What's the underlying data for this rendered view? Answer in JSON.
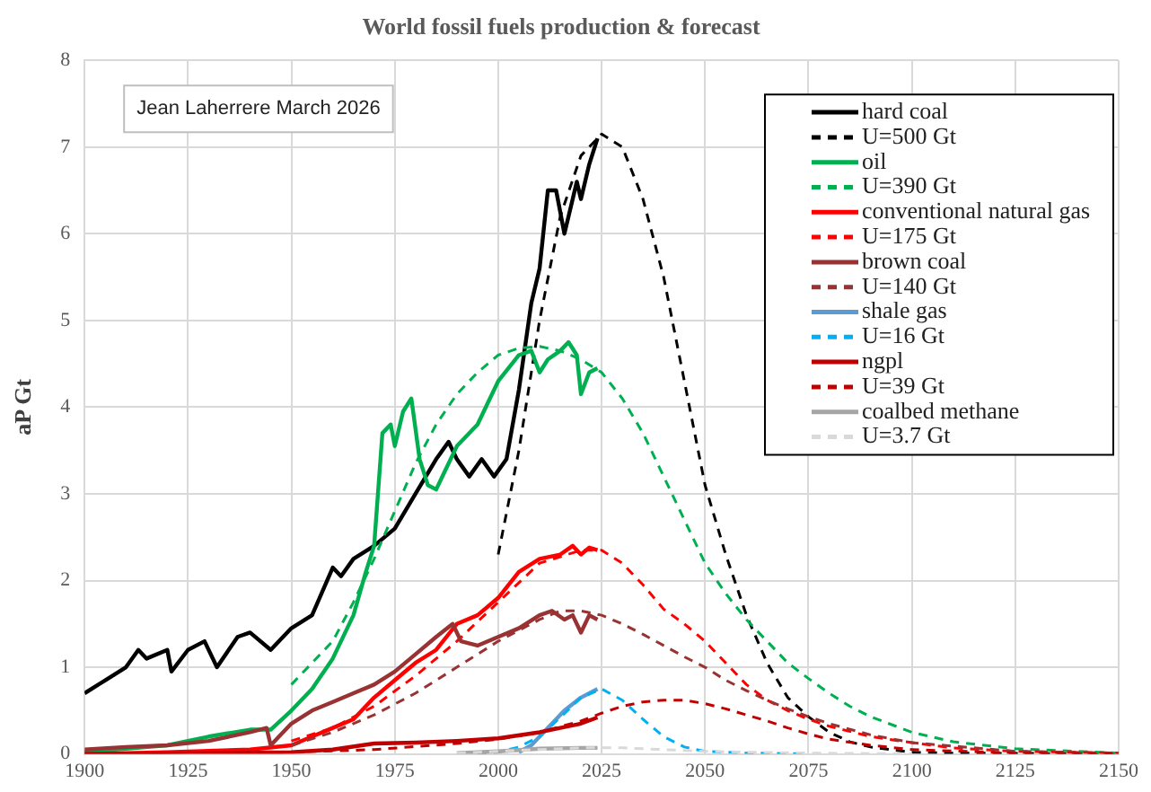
{
  "chart_data": {
    "type": "line",
    "title": "World fossil fuels production & forecast",
    "ylabel": "aP Gt",
    "annotations": [
      "Jean Laherrere March 2026"
    ],
    "xlim": [
      1900,
      2150
    ],
    "xticks": [
      1900,
      1925,
      1950,
      1975,
      2000,
      2025,
      2050,
      2075,
      2100,
      2125,
      2150
    ],
    "ylim": [
      0,
      8
    ],
    "yticks": [
      0,
      1,
      2,
      3,
      4,
      5,
      6,
      7,
      8
    ],
    "grid": true,
    "legend": "top right",
    "marker": "none",
    "series": [
      {
        "name": "hard coal",
        "color": "#000000",
        "line_style": "solid",
        "x": [
          1900,
          1905,
          1910,
          1913,
          1915,
          1920,
          1921,
          1925,
          1929,
          1932,
          1937,
          1940,
          1945,
          1950,
          1955,
          1960,
          1962,
          1965,
          1970,
          1975,
          1980,
          1985,
          1988,
          1990,
          1993,
          1996,
          1999,
          2002,
          2005,
          2008,
          2010,
          2012,
          2014,
          2016,
          2018,
          2019,
          2020,
          2022,
          2024
        ],
        "values": [
          0.7,
          0.85,
          1.0,
          1.2,
          1.1,
          1.2,
          0.95,
          1.2,
          1.3,
          1.0,
          1.35,
          1.4,
          1.2,
          1.45,
          1.6,
          2.15,
          2.05,
          2.25,
          2.4,
          2.6,
          3.0,
          3.4,
          3.6,
          3.4,
          3.2,
          3.4,
          3.2,
          3.4,
          4.2,
          5.2,
          5.6,
          6.5,
          6.5,
          6.0,
          6.4,
          6.6,
          6.4,
          6.8,
          7.1
        ]
      },
      {
        "name": "U=500 Gt",
        "color": "#000000",
        "line_style": "dashed",
        "x": [
          2000,
          2005,
          2010,
          2015,
          2020,
          2025,
          2030,
          2035,
          2040,
          2045,
          2050,
          2055,
          2060,
          2065,
          2070,
          2075,
          2080,
          2085,
          2090,
          2100,
          2110,
          2150
        ],
        "values": [
          2.3,
          3.5,
          5.0,
          6.2,
          6.9,
          7.15,
          7.0,
          6.4,
          5.5,
          4.3,
          3.1,
          2.3,
          1.6,
          1.05,
          0.65,
          0.43,
          0.25,
          0.14,
          0.08,
          0.02,
          0.01,
          0
        ]
      },
      {
        "name": "oil",
        "color": "#00b050",
        "line_style": "solid",
        "x": [
          1900,
          1920,
          1930,
          1940,
          1945,
          1950,
          1955,
          1960,
          1965,
          1968,
          1970,
          1972,
          1974,
          1975,
          1977,
          1979,
          1981,
          1983,
          1985,
          1987,
          1990,
          1995,
          1998,
          2000,
          2005,
          2008,
          2010,
          2012,
          2015,
          2017,
          2019,
          2020,
          2022,
          2024
        ],
        "values": [
          0.02,
          0.1,
          0.2,
          0.28,
          0.28,
          0.5,
          0.75,
          1.1,
          1.6,
          2.1,
          2.4,
          3.7,
          3.8,
          3.55,
          3.95,
          4.1,
          3.4,
          3.1,
          3.05,
          3.25,
          3.55,
          3.8,
          4.1,
          4.3,
          4.6,
          4.65,
          4.4,
          4.55,
          4.65,
          4.75,
          4.6,
          4.15,
          4.4,
          4.45
        ]
      },
      {
        "name": "U=390 Gt",
        "color": "#00b050",
        "line_style": "dashed",
        "x": [
          1950,
          1955,
          1960,
          1965,
          1970,
          1975,
          1980,
          1985,
          1990,
          1995,
          2000,
          2005,
          2010,
          2015,
          2020,
          2025,
          2030,
          2035,
          2040,
          2045,
          2050,
          2055,
          2060,
          2065,
          2070,
          2075,
          2080,
          2085,
          2090,
          2100,
          2110,
          2125,
          2150
        ],
        "values": [
          0.8,
          1.05,
          1.3,
          1.75,
          2.25,
          2.8,
          3.35,
          3.8,
          4.15,
          4.4,
          4.6,
          4.68,
          4.7,
          4.65,
          4.55,
          4.4,
          4.1,
          3.7,
          3.2,
          2.7,
          2.2,
          1.85,
          1.55,
          1.3,
          1.05,
          0.87,
          0.7,
          0.55,
          0.43,
          0.25,
          0.14,
          0.06,
          0.01
        ]
      },
      {
        "name": "conventional natural gas",
        "color": "#ff0000",
        "line_style": "solid",
        "x": [
          1900,
          1920,
          1940,
          1950,
          1955,
          1960,
          1965,
          1970,
          1975,
          1980,
          1985,
          1990,
          1995,
          2000,
          2005,
          2010,
          2015,
          2018,
          2020,
          2022,
          2024
        ],
        "values": [
          0,
          0.02,
          0.05,
          0.1,
          0.2,
          0.3,
          0.4,
          0.65,
          0.85,
          1.05,
          1.2,
          1.5,
          1.6,
          1.8,
          2.1,
          2.25,
          2.3,
          2.4,
          2.3,
          2.38,
          2.35
        ]
      },
      {
        "name": "U=175 Gt",
        "color": "#ff0000",
        "line_style": "dashed",
        "x": [
          1950,
          1960,
          1970,
          1980,
          1990,
          2000,
          2010,
          2020,
          2025,
          2030,
          2035,
          2040,
          2045,
          2050,
          2055,
          2060,
          2065,
          2070,
          2075,
          2080,
          2090,
          2100,
          2110,
          2125,
          2150
        ],
        "values": [
          0.15,
          0.3,
          0.55,
          0.9,
          1.3,
          1.75,
          2.2,
          2.35,
          2.35,
          2.2,
          1.95,
          1.67,
          1.5,
          1.3,
          1.05,
          0.8,
          0.62,
          0.5,
          0.4,
          0.32,
          0.2,
          0.13,
          0.07,
          0.03,
          0.01
        ]
      },
      {
        "name": "brown coal",
        "color": "#993333",
        "line_style": "solid",
        "x": [
          1900,
          1910,
          1920,
          1930,
          1940,
          1944,
          1945,
          1947,
          1950,
          1955,
          1960,
          1965,
          1970,
          1975,
          1980,
          1985,
          1989,
          1991,
          1995,
          2000,
          2005,
          2010,
          2013,
          2016,
          2018,
          2020,
          2022,
          2024
        ],
        "values": [
          0.05,
          0.08,
          0.1,
          0.15,
          0.25,
          0.3,
          0.1,
          0.2,
          0.35,
          0.5,
          0.6,
          0.7,
          0.8,
          0.95,
          1.15,
          1.35,
          1.5,
          1.3,
          1.25,
          1.35,
          1.45,
          1.6,
          1.65,
          1.55,
          1.6,
          1.4,
          1.6,
          1.55
        ]
      },
      {
        "name": "U=140 Gt",
        "color": "#993333",
        "line_style": "dashed",
        "x": [
          1950,
          1960,
          1970,
          1980,
          1990,
          2000,
          2010,
          2015,
          2020,
          2025,
          2030,
          2035,
          2040,
          2045,
          2050,
          2055,
          2060,
          2065,
          2070,
          2075,
          2080,
          2090,
          2100,
          2125,
          2150
        ],
        "values": [
          0.1,
          0.25,
          0.45,
          0.7,
          1.0,
          1.3,
          1.55,
          1.65,
          1.65,
          1.6,
          1.5,
          1.38,
          1.25,
          1.12,
          1.0,
          0.85,
          0.73,
          0.62,
          0.52,
          0.43,
          0.35,
          0.22,
          0.13,
          0.03,
          0.01
        ]
      },
      {
        "name": "shale gas",
        "color": "#5b9bd5",
        "line_style": "solid",
        "x": [
          2005,
          2008,
          2010,
          2013,
          2016,
          2020,
          2024
        ],
        "values": [
          0.02,
          0.1,
          0.2,
          0.35,
          0.5,
          0.65,
          0.75
        ]
      },
      {
        "name": "U=16 Gt",
        "color": "#00b0f0",
        "line_style": "dashed",
        "x": [
          1995,
          2000,
          2005,
          2010,
          2015,
          2020,
          2025,
          2030,
          2035,
          2040,
          2045,
          2050,
          2060,
          2075
        ],
        "values": [
          0,
          0.02,
          0.08,
          0.2,
          0.42,
          0.65,
          0.75,
          0.62,
          0.4,
          0.2,
          0.08,
          0.03,
          0.01,
          0
        ]
      },
      {
        "name": "ngpl",
        "color": "#c00000",
        "line_style": "solid",
        "x": [
          1900,
          1930,
          1950,
          1960,
          1970,
          1980,
          1990,
          2000,
          2010,
          2015,
          2020,
          2024
        ],
        "values": [
          0,
          0.01,
          0.02,
          0.05,
          0.12,
          0.13,
          0.15,
          0.18,
          0.25,
          0.3,
          0.35,
          0.42
        ]
      },
      {
        "name": "U=39 Gt",
        "color": "#c00000",
        "line_style": "dashed",
        "x": [
          1950,
          1970,
          1990,
          2000,
          2010,
          2020,
          2025,
          2030,
          2035,
          2040,
          2045,
          2050,
          2055,
          2060,
          2065,
          2070,
          2075,
          2080,
          2090,
          2100,
          2125,
          2150
        ],
        "values": [
          0.02,
          0.05,
          0.12,
          0.17,
          0.25,
          0.38,
          0.47,
          0.55,
          0.6,
          0.62,
          0.62,
          0.58,
          0.52,
          0.45,
          0.38,
          0.3,
          0.23,
          0.17,
          0.1,
          0.05,
          0.01,
          0
        ]
      },
      {
        "name": "coalbed methane",
        "color": "#a6a6a6",
        "line_style": "solid",
        "x": [
          1990,
          2000,
          2010,
          2020,
          2024
        ],
        "values": [
          0.01,
          0.03,
          0.06,
          0.07,
          0.07
        ]
      },
      {
        "name": "U=3.7 Gt",
        "color": "#d9d9d9",
        "line_style": "dashed",
        "x": [
          1990,
          2000,
          2010,
          2020,
          2030,
          2040,
          2050,
          2060,
          2075,
          2100
        ],
        "values": [
          0.01,
          0.03,
          0.05,
          0.07,
          0.07,
          0.05,
          0.03,
          0.02,
          0.01,
          0
        ]
      }
    ]
  }
}
